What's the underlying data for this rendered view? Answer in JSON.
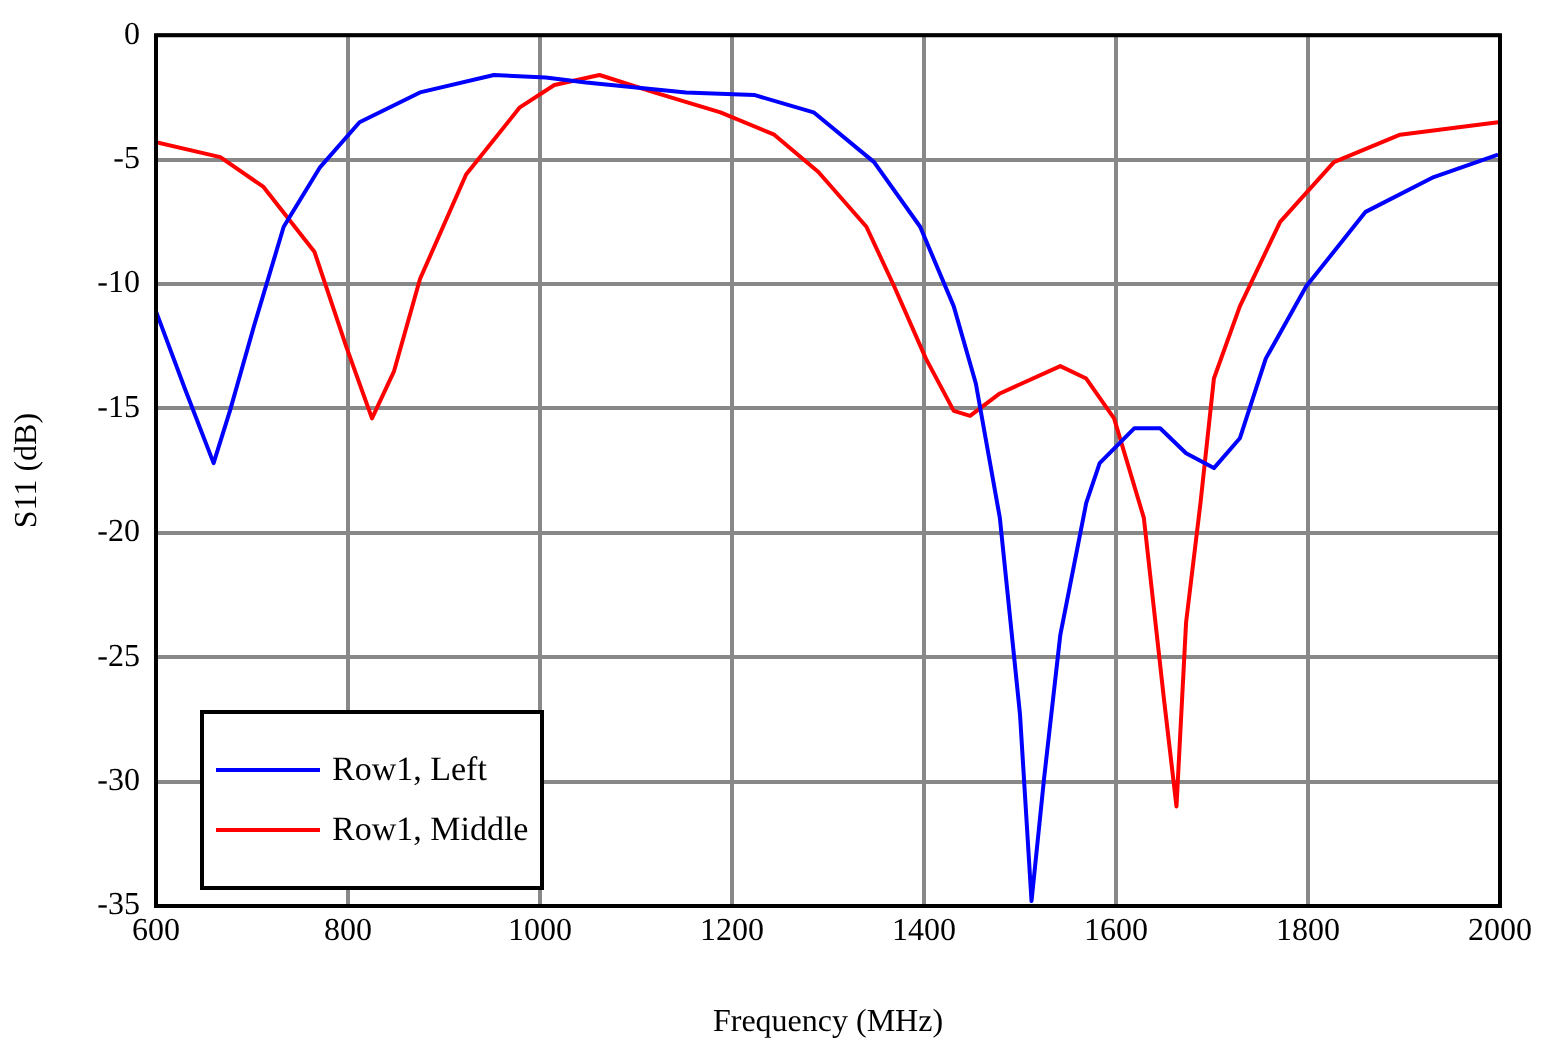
{
  "chart_data": {
    "type": "line",
    "xlabel": "Frequency (MHz)",
    "ylabel": "S11 (dB)",
    "xlim": [
      600,
      2000
    ],
    "xticks": [
      600,
      800,
      1000,
      1200,
      1400,
      1600,
      1800,
      2000
    ],
    "ylim": [
      -35,
      0
    ],
    "yticks": [
      -35,
      -30,
      -25,
      -20,
      -15,
      -10,
      -5,
      0
    ],
    "grid": true,
    "legend": "bottom left",
    "marker": "none",
    "line_style": "solid",
    "series": [
      {
        "name": "Row1, Left",
        "color": "#0000ff",
        "x": [
          600,
          630,
          660,
          677,
          702,
          733,
          771,
          812,
          875,
          952,
          1006,
          1048,
          1152,
          1223,
          1285,
          1348,
          1396,
          1431,
          1454,
          1479,
          1500,
          1512,
          1525,
          1542,
          1569,
          1583,
          1619,
          1646,
          1673,
          1702,
          1729,
          1756,
          1798,
          1860,
          1931,
          1998
        ],
        "values": [
          -11.1,
          -14.2,
          -17.2,
          -15.1,
          -11.7,
          -7.7,
          -5.3,
          -3.5,
          -2.3,
          -1.6,
          -1.7,
          -1.9,
          -2.3,
          -2.4,
          -3.1,
          -5.1,
          -7.7,
          -10.9,
          -14.0,
          -19.4,
          -27.3,
          -34.8,
          -29.9,
          -24.1,
          -18.8,
          -17.2,
          -15.8,
          -15.8,
          -16.8,
          -17.4,
          -16.2,
          -13.0,
          -10.1,
          -7.1,
          -5.7,
          -4.8
        ]
      },
      {
        "name": "Row1, Middle",
        "color": "#ff0000",
        "x": [
          600,
          667,
          712,
          765,
          798,
          825,
          848,
          875,
          923,
          979,
          1015,
          1062,
          1119,
          1188,
          1244,
          1290,
          1340,
          1369,
          1402,
          1431,
          1448,
          1479,
          1542,
          1569,
          1598,
          1629,
          1650,
          1663,
          1673,
          1688,
          1702,
          1729,
          1771,
          1827,
          1896,
          1998
        ],
        "values": [
          -4.3,
          -4.9,
          -6.1,
          -8.7,
          -12.5,
          -15.4,
          -13.5,
          -9.8,
          -5.6,
          -2.9,
          -2.0,
          -1.6,
          -2.3,
          -3.1,
          -4.0,
          -5.5,
          -7.7,
          -10.1,
          -13.0,
          -15.1,
          -15.3,
          -14.4,
          -13.3,
          -13.8,
          -15.4,
          -19.4,
          -26.7,
          -31.0,
          -23.6,
          -18.8,
          -13.8,
          -10.9,
          -7.5,
          -5.1,
          -4.0,
          -3.5
        ]
      }
    ]
  }
}
